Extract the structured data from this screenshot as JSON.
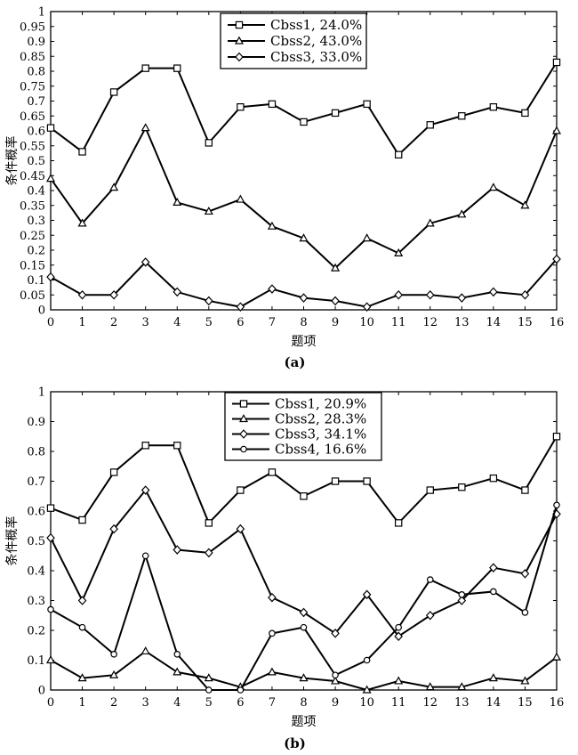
{
  "chart_data": [
    {
      "type": "line",
      "caption": "(a)",
      "xlabel": "题项",
      "ylabel": "条件概率",
      "xlim": [
        0,
        16
      ],
      "ylim": [
        0,
        1
      ],
      "x": [
        0,
        1,
        2,
        3,
        4,
        5,
        6,
        7,
        8,
        9,
        10,
        11,
        12,
        13,
        14,
        15,
        16
      ],
      "yticks": [
        "0",
        "0.05",
        "0.1",
        "0.15",
        "0.2",
        "0.25",
        "0.3",
        "0.35",
        "0.4",
        "0.45",
        "0.5",
        "0.55",
        "0.6",
        "0.65",
        "0.7",
        "0.75",
        "0.8",
        "0.85",
        "0.9",
        "0.95",
        "1"
      ],
      "xticks": [
        "0",
        "1",
        "2",
        "3",
        "4",
        "5",
        "6",
        "7",
        "8",
        "9",
        "10",
        "11",
        "12",
        "13",
        "14",
        "15",
        "16"
      ],
      "legend_position": "top-center",
      "series": [
        {
          "name": "Cbss1",
          "legend_label": "Cbss1, 24.0%",
          "marker": "square",
          "values": [
            0.61,
            0.53,
            0.73,
            0.81,
            0.81,
            0.56,
            0.68,
            0.69,
            0.63,
            0.66,
            0.69,
            0.52,
            0.62,
            0.65,
            0.68,
            0.66,
            0.83
          ]
        },
        {
          "name": "Cbss2",
          "legend_label": "Cbss2, 43.0%",
          "marker": "triangle",
          "values": [
            0.44,
            0.29,
            0.41,
            0.61,
            0.36,
            0.33,
            0.37,
            0.28,
            0.24,
            0.14,
            0.24,
            0.19,
            0.29,
            0.32,
            0.41,
            0.35,
            0.6
          ]
        },
        {
          "name": "Cbss3",
          "legend_label": "Cbss3, 33.0%",
          "marker": "diamond",
          "values": [
            0.11,
            0.05,
            0.05,
            0.16,
            0.06,
            0.03,
            0.01,
            0.07,
            0.04,
            0.03,
            0.01,
            0.05,
            0.05,
            0.04,
            0.06,
            0.05,
            0.17
          ]
        }
      ]
    },
    {
      "type": "line",
      "caption": "(b)",
      "xlabel": "题项",
      "ylabel": "条件概率",
      "xlim": [
        0,
        16
      ],
      "ylim": [
        0,
        1
      ],
      "x": [
        0,
        1,
        2,
        3,
        4,
        5,
        6,
        7,
        8,
        9,
        10,
        11,
        12,
        13,
        14,
        15,
        16
      ],
      "yticks": [
        "0",
        "0.1",
        "0.2",
        "0.3",
        "0.4",
        "0.5",
        "0.6",
        "0.7",
        "0.8",
        "0.9",
        "1"
      ],
      "xticks": [
        "0",
        "1",
        "2",
        "3",
        "4",
        "5",
        "6",
        "7",
        "8",
        "9",
        "10",
        "11",
        "12",
        "13",
        "14",
        "15",
        "16"
      ],
      "legend_position": "top-center",
      "series": [
        {
          "name": "Cbss1",
          "legend_label": "Cbss1, 20.9%",
          "marker": "square",
          "values": [
            0.61,
            0.57,
            0.73,
            0.82,
            0.82,
            0.56,
            0.67,
            0.73,
            0.65,
            0.7,
            0.7,
            0.56,
            0.67,
            0.68,
            0.71,
            0.67,
            0.85
          ]
        },
        {
          "name": "Cbss2",
          "legend_label": "Cbss2, 28.3%",
          "marker": "triangle",
          "values": [
            0.1,
            0.04,
            0.05,
            0.13,
            0.06,
            0.04,
            0.01,
            0.06,
            0.04,
            0.03,
            0.0,
            0.03,
            0.01,
            0.01,
            0.04,
            0.03,
            0.11
          ]
        },
        {
          "name": "Cbss3",
          "legend_label": "Cbss3, 34.1%",
          "marker": "diamond",
          "values": [
            0.51,
            0.3,
            0.54,
            0.67,
            0.47,
            0.46,
            0.54,
            0.31,
            0.26,
            0.19,
            0.32,
            0.18,
            0.25,
            0.3,
            0.41,
            0.39,
            0.59
          ]
        },
        {
          "name": "Cbss4",
          "legend_label": "Cbss4, 16.6%",
          "marker": "circle",
          "values": [
            0.27,
            0.21,
            0.12,
            0.45,
            0.12,
            0.0,
            0.0,
            0.19,
            0.21,
            0.05,
            0.1,
            0.21,
            0.37,
            0.32,
            0.33,
            0.26,
            0.62
          ]
        }
      ]
    }
  ]
}
